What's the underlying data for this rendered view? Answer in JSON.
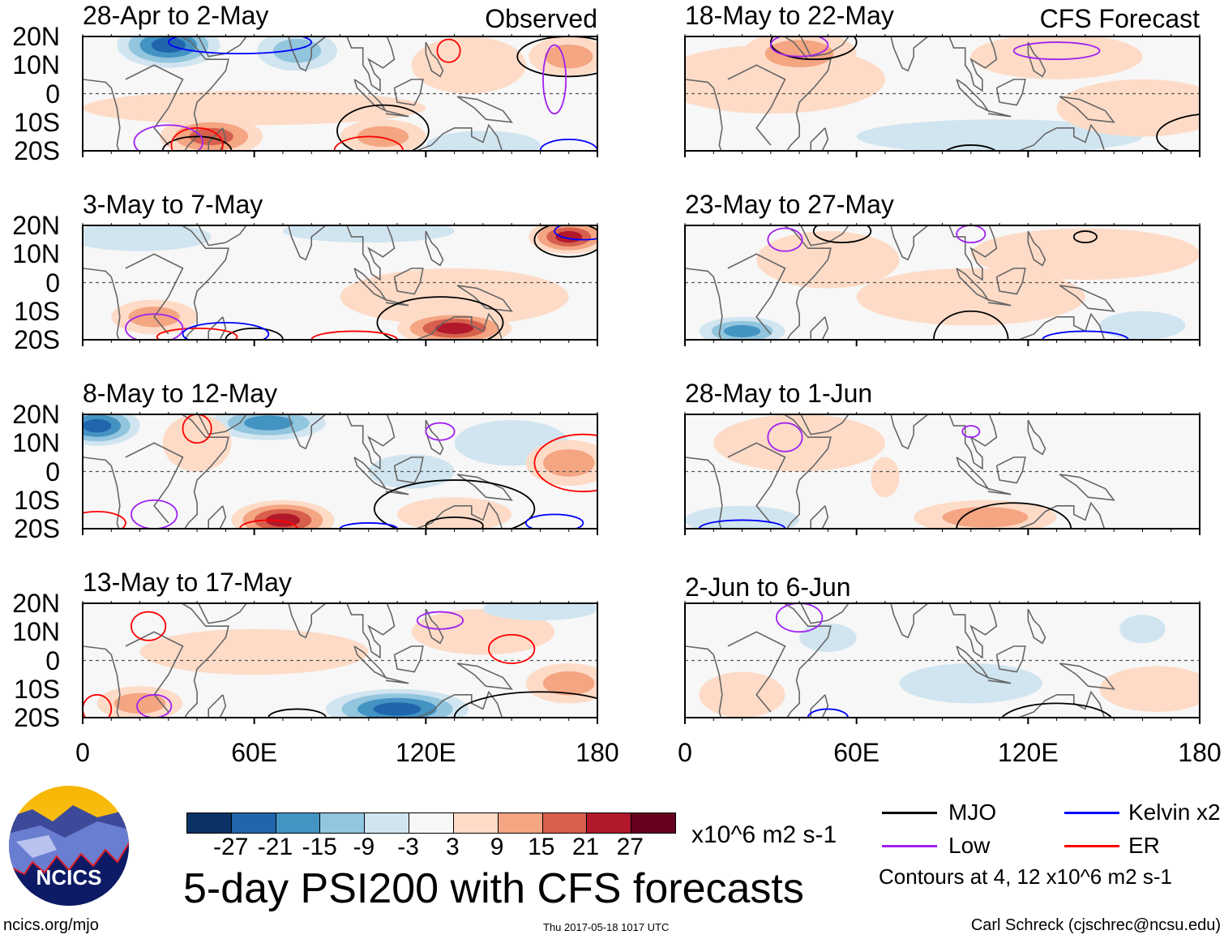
{
  "chart_data": {
    "type": "heatmap",
    "title": "5-day PSI200 with CFS forecasts",
    "units": "x10^6 m2 s-1",
    "lon_range": [
      0,
      180
    ],
    "lat_range": [
      -20,
      20
    ],
    "x_ticks": [
      "0",
      "60E",
      "120E",
      "180"
    ],
    "y_ticks": [
      "20N",
      "10N",
      "0",
      "10S",
      "20S"
    ],
    "colorbar": {
      "levels": [
        "-27",
        "-21",
        "-15",
        "-9",
        "-3",
        "3",
        "9",
        "15",
        "21",
        "27"
      ],
      "colors": [
        "#0b3264",
        "#2166ac",
        "#4393c3",
        "#92c5de",
        "#d1e5f0",
        "#f7f7f7",
        "#fddbc7",
        "#f4a582",
        "#d6604d",
        "#b2182b",
        "#67001f"
      ]
    },
    "legend": [
      {
        "name": "MJO",
        "color": "#000000"
      },
      {
        "name": "Kelvin x2",
        "color": "#0000ff"
      },
      {
        "name": "Low",
        "color": "#a020f0"
      },
      {
        "name": "ER",
        "color": "#ff0000"
      }
    ],
    "contour_note": "Contours at 4, 12 x10^6 m2 s-1",
    "panels": [
      {
        "title": "28-Apr to 2-May",
        "tag": "Observed",
        "anomalies": [
          [
            60,
            -5,
            3,
            60,
            6
          ],
          [
            135,
            10,
            3,
            20,
            10
          ],
          [
            30,
            17,
            -21,
            18,
            8
          ],
          [
            75,
            15,
            -9,
            14,
            7
          ],
          [
            140,
            -18,
            -6,
            20,
            5
          ],
          [
            45,
            -15,
            15,
            18,
            7
          ],
          [
            105,
            -15,
            9,
            15,
            6
          ],
          [
            170,
            13,
            9,
            14,
            7
          ]
        ],
        "contours": {
          "mjo": [
            [
              105,
              -13,
              16,
              9
            ],
            [
              170,
              13,
              18,
              7
            ],
            [
              40,
              -20,
              12,
              5
            ]
          ],
          "er": [
            [
              40,
              -18,
              9,
              6
            ],
            [
              100,
              -20,
              12,
              5
            ],
            [
              128,
              15,
              4,
              4
            ]
          ],
          "low": [
            [
              30,
              -17,
              12,
              6
            ],
            [
              165,
              5,
              4,
              12
            ]
          ],
          "kelvin": [
            [
              55,
              18,
              25,
              4
            ],
            [
              170,
              -20,
              10,
              4
            ]
          ]
        }
      },
      {
        "title": "3-May to 7-May",
        "tag": "",
        "anomalies": [
          [
            130,
            -5,
            3,
            40,
            10
          ],
          [
            20,
            16,
            -6,
            25,
            5
          ],
          [
            100,
            18,
            -6,
            30,
            4
          ],
          [
            170,
            16,
            21,
            14,
            6
          ],
          [
            130,
            -16,
            21,
            20,
            6
          ],
          [
            25,
            -12,
            9,
            15,
            6
          ]
        ],
        "contours": {
          "mjo": [
            [
              125,
              -14,
              22,
              9
            ],
            [
              170,
              15,
              12,
              6
            ],
            [
              60,
              -20,
              10,
              4
            ]
          ],
          "er": [
            [
              40,
              -19,
              14,
              3
            ],
            [
              95,
              -20,
              15,
              3
            ]
          ],
          "low": [
            [
              25,
              -16,
              10,
              5
            ]
          ],
          "kelvin": [
            [
              50,
              -18,
              15,
              4
            ],
            [
              175,
              18,
              10,
              3
            ]
          ]
        }
      },
      {
        "title": "8-May to 12-May",
        "tag": "",
        "anomalies": [
          [
            150,
            10,
            -3,
            20,
            8
          ],
          [
            115,
            0,
            -3,
            15,
            6
          ],
          [
            5,
            16,
            -21,
            15,
            7
          ],
          [
            65,
            17,
            -15,
            20,
            6
          ],
          [
            70,
            -17,
            21,
            18,
            7
          ],
          [
            40,
            10,
            6,
            12,
            10
          ],
          [
            170,
            3,
            12,
            15,
            8
          ],
          [
            130,
            -15,
            6,
            20,
            6
          ]
        ],
        "contours": {
          "mjo": [
            [
              130,
              -13,
              28,
              10
            ],
            [
              130,
              -19,
              10,
              3
            ]
          ],
          "er": [
            [
              40,
              15,
              5,
              5
            ],
            [
              175,
              3,
              17,
              10
            ],
            [
              5,
              -18,
              10,
              4
            ],
            [
              65,
              -20,
              10,
              3
            ]
          ],
          "low": [
            [
              125,
              14,
              5,
              3
            ],
            [
              25,
              -15,
              8,
              5
            ]
          ],
          "kelvin": [
            [
              165,
              -18,
              10,
              3
            ],
            [
              100,
              -20,
              10,
              2
            ]
          ]
        }
      },
      {
        "title": "13-May to 17-May",
        "tag": "",
        "anomalies": [
          [
            60,
            3,
            3,
            40,
            8
          ],
          [
            140,
            10,
            3,
            25,
            8
          ],
          [
            160,
            18,
            -3,
            20,
            4
          ],
          [
            110,
            -17,
            -21,
            25,
            7
          ],
          [
            170,
            -8,
            12,
            15,
            7
          ],
          [
            20,
            -15,
            9,
            15,
            6
          ]
        ],
        "contours": {
          "mjo": [
            [
              160,
              -20,
              30,
              9
            ],
            [
              75,
              -20,
              10,
              3
            ]
          ],
          "er": [
            [
              23,
              12,
              6,
              5
            ],
            [
              150,
              4,
              8,
              5
            ],
            [
              5,
              -17,
              5,
              5
            ]
          ],
          "low": [
            [
              125,
              14,
              8,
              3
            ],
            [
              25,
              -16,
              6,
              4
            ]
          ],
          "kelvin": []
        }
      },
      {
        "title": "18-May to 22-May",
        "tag": "CFS Forecast",
        "anomalies": [
          [
            30,
            5,
            6,
            40,
            12
          ],
          [
            110,
            -15,
            -3,
            50,
            6
          ],
          [
            160,
            -5,
            3,
            30,
            10
          ],
          [
            130,
            13,
            3,
            30,
            8
          ],
          [
            40,
            14,
            12,
            20,
            8
          ]
        ],
        "contours": {
          "mjo": [
            [
              45,
              18,
              15,
              6
            ],
            [
              185,
              -15,
              20,
              8
            ],
            [
              100,
              -22,
              10,
              4
            ]
          ],
          "er": [],
          "low": [
            [
              40,
              17,
              10,
              4
            ],
            [
              130,
              15,
              15,
              3
            ]
          ],
          "kelvin": []
        }
      },
      {
        "title": "23-May to 27-May",
        "tag": "",
        "anomalies": [
          [
            50,
            8,
            6,
            25,
            10
          ],
          [
            140,
            10,
            6,
            40,
            9
          ],
          [
            100,
            -5,
            3,
            40,
            10
          ],
          [
            160,
            -15,
            -3,
            15,
            5
          ],
          [
            20,
            -17,
            -15,
            15,
            5
          ]
        ],
        "contours": {
          "mjo": [
            [
              100,
              -20,
              13,
              10
            ],
            [
              55,
              18,
              10,
              4
            ],
            [
              140,
              16,
              4,
              2
            ]
          ],
          "er": [],
          "low": [
            [
              35,
              15,
              6,
              4
            ],
            [
              100,
              17,
              5,
              3
            ]
          ],
          "kelvin": [
            [
              140,
              -20,
              15,
              3
            ]
          ]
        }
      },
      {
        "title": "28-May to 1-Jun",
        "tag": "",
        "anomalies": [
          [
            40,
            10,
            6,
            30,
            10
          ],
          [
            105,
            -16,
            9,
            25,
            6
          ],
          [
            70,
            -2,
            3,
            5,
            7
          ],
          [
            20,
            -17,
            -3,
            20,
            5
          ]
        ],
        "contours": {
          "mjo": [
            [
              115,
              -20,
              20,
              9
            ]
          ],
          "er": [],
          "low": [
            [
              35,
              12,
              6,
              5
            ],
            [
              100,
              14,
              3,
              2
            ]
          ],
          "kelvin": [
            [
              20,
              -20,
              15,
              3
            ]
          ]
        }
      },
      {
        "title": "2-Jun to 6-Jun",
        "tag": "",
        "anomalies": [
          [
            100,
            -8,
            -3,
            25,
            7
          ],
          [
            20,
            -12,
            3,
            15,
            8
          ],
          [
            165,
            -10,
            3,
            20,
            8
          ],
          [
            160,
            11,
            -3,
            8,
            5
          ],
          [
            50,
            8,
            -3,
            10,
            5
          ]
        ],
        "contours": {
          "mjo": [
            [
              130,
              -22,
              20,
              7
            ]
          ],
          "er": [],
          "low": [
            [
              40,
              15,
              8,
              5
            ]
          ],
          "kelvin": [
            [
              50,
              -20,
              7,
              3
            ]
          ]
        }
      }
    ]
  },
  "logo": {
    "text": "NCICS"
  },
  "footer": {
    "url": "ncics.org/mjo",
    "timestamp": "Thu 2017-05-18 1017 UTC",
    "credit": "Carl Schreck (cjschrec@ncsu.edu)"
  }
}
